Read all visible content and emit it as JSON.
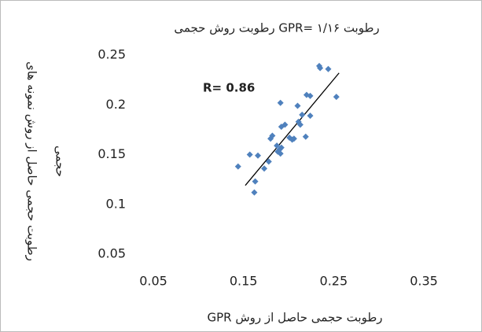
{
  "chart_data": {
    "type": "scatter",
    "title": "رطوبت GPR= ۱/۱۶ رطوبت روش حجمی",
    "xlabel": "رطوبت حجمی حاصل از روش GPR",
    "ylabel_lines": [
      "رطوبت حجمی حاصل از روش نمونه های",
      "حجمی"
    ],
    "annotation": "R= 0.86",
    "color": "#4f81bd",
    "series": [
      {
        "x": [
          0.144,
          0.157,
          0.166,
          0.162,
          0.163,
          0.173,
          0.178,
          0.18,
          0.182,
          0.187,
          0.19,
          0.191,
          0.192,
          0.196,
          0.188,
          0.191,
          0.192,
          0.201,
          0.204,
          0.206,
          0.21,
          0.211,
          0.213,
          0.215,
          0.219,
          0.22,
          0.224,
          0.224,
          0.234,
          0.235,
          0.244,
          0.253
        ],
        "values": [
          0.138,
          0.15,
          0.149,
          0.112,
          0.123,
          0.136,
          0.143,
          0.166,
          0.169,
          0.159,
          0.155,
          0.202,
          0.178,
          0.18,
          0.153,
          0.151,
          0.157,
          0.167,
          0.165,
          0.166,
          0.199,
          0.183,
          0.18,
          0.19,
          0.168,
          0.21,
          0.209,
          0.189,
          0.239,
          0.237,
          0.236,
          0.208
        ]
      }
    ],
    "trendline": {
      "x": [
        0.152,
        0.256
      ],
      "y": [
        0.119,
        0.232
      ]
    },
    "xlim": [
      0.05,
      0.35
    ],
    "xticks": [
      0.05,
      0.15,
      0.25,
      0.35
    ],
    "ylim": [
      0.05,
      0.25
    ],
    "yticks": [
      0.05,
      0.1,
      0.15,
      0.2,
      0.25
    ]
  }
}
